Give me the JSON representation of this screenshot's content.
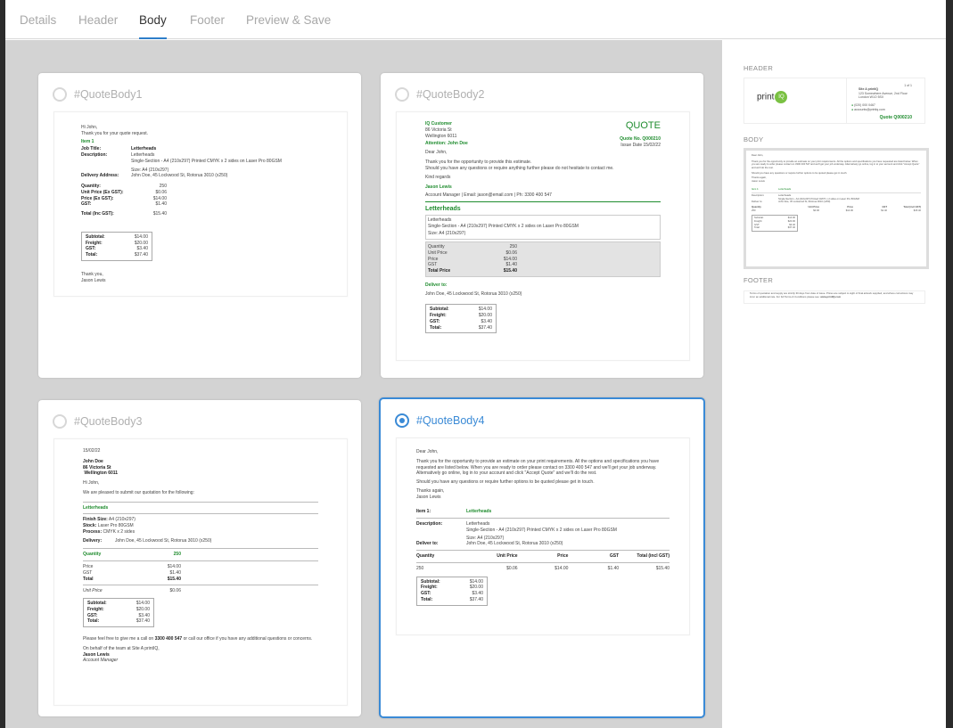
{
  "tabs": [
    {
      "label": "Details",
      "active": false
    },
    {
      "label": "Header",
      "active": false
    },
    {
      "label": "Body",
      "active": true
    },
    {
      "label": "Footer",
      "active": false
    },
    {
      "label": "Preview & Save",
      "active": false
    }
  ],
  "cards": [
    {
      "title": "#QuoteBody1",
      "selected": false
    },
    {
      "title": "#QuoteBody2",
      "selected": false
    },
    {
      "title": "#QuoteBody3",
      "selected": false
    },
    {
      "title": "#QuoteBody4",
      "selected": true
    }
  ],
  "body1": {
    "greeting": "Hi John,",
    "intro": "Thank you for your quote request.",
    "item": "Item 1",
    "job_title_k": "Job Title:",
    "job_title_v": "Letterheads",
    "desc_k": "Description:",
    "desc_v1": "Letterheads",
    "desc_v2": "Single-Section - A4 (210x297) Printed CMYK x 2 sides on Laser Pro 80GSM",
    "size": "Size: A4 (210x297)",
    "delivery_k": "Delivery Address:",
    "delivery_v": "John Doe, 45 Lockwood St, Rotorua 3010 (x250)",
    "qty_k": "Quantity:",
    "qty_v": "250",
    "unit_k": "Unit Price (Ex GST):",
    "unit_v": "$0.06",
    "price_k": "Price (Ex GST):",
    "price_v": "$14.00",
    "gst_k": "GST:",
    "gst_v": "$1.40",
    "total_k": "Total (Inc GST):",
    "total_v": "$15.40",
    "sub_k": "Subtotal:",
    "sub_v": "$14.00",
    "frt_k": "Freight:",
    "frt_v": "$20.00",
    "tgst_k": "GST:",
    "tgst_v": "$3.40",
    "tot_k": "Total:",
    "tot_v": "$37.40",
    "thanks": "Thank you,",
    "sign": "Jason Lewis"
  },
  "body2": {
    "company": "IQ Customer",
    "addr1": "86 Victoria St",
    "addr2": "Wellington 6011",
    "quote": "QUOTE",
    "qno_k": "Quote No.",
    "qno_v": "Q000210",
    "date_k": "Issue Date",
    "date_v": "15/02/22",
    "attn": "Attention: John Doe",
    "dear": "Dear John,",
    "p1": "Thank you for the opportunity to provide this estimate.",
    "p2": "Should you have any questions or require anything further please do not hesitate to contact me.",
    "regards": "Kind regards",
    "sign": "Jason Lewis",
    "contact": "Account Manager | Email: jason@email.com | Ph: 3300 400 547",
    "item": "Letterheads",
    "d1": "Letterheads",
    "d2": "Single-Section - A4 (210x297) Printed CMYK x 2 sides on Laser Pro 80GSM",
    "size": "Size: A4 (210x297)",
    "qty_k": "Quantity",
    "qty_v": "250",
    "unit_k": "Unit Price",
    "unit_v": "$0.06",
    "price_k": "Price",
    "price_v": "$14.00",
    "gst_k": "GST",
    "gst_v": "$1.40",
    "total_k": "Total Price",
    "total_v": "$15.40",
    "deliver_k": "Deliver to:",
    "deliver_v": "John Doe, 45 Lockwood St, Rotorua 3010 (x250)",
    "sub_k": "Subtotal:",
    "sub_v": "$14.00",
    "frt_k": "Freight:",
    "frt_v": "$20.00",
    "tgst_k": "GST:",
    "tgst_v": "$3.40",
    "tot_k": "Total:",
    "tot_v": "$37.40"
  },
  "body3": {
    "date": "15/02/22",
    "name": "John Doe",
    "addr1": "86 Victoria St",
    "addr2": "Wellington 6011",
    "hi": "Hi John,",
    "intro": "We are pleased to submit our quotation for the following:",
    "item": "Letterheads",
    "fs_k": "Finish Size:",
    "fs_v": "A4 (210x297)",
    "st_k": "Stock:",
    "st_v": "Laser Pro 80GSM",
    "pr_k": "Process:",
    "pr_v": "CMYK x 2 sides",
    "del_k": "Delivery:",
    "del_v": "John Doe, 45 Lockwood St, Rotorua 3010 (x250)",
    "qty_k": "Quantity",
    "qty_v": "250",
    "price_k": "Price",
    "price_v": "$14.00",
    "gst_k": "GST",
    "gst_v": "$1.40",
    "total_k": "Total",
    "total_v": "$15.40",
    "unit_k": "Unit Price",
    "unit_v": "$0.06",
    "sub_k": "Subtotal:",
    "sub_v": "$14.00",
    "frt_k": "Freight:",
    "frt_v": "$20.00",
    "tgst_k": "GST:",
    "tgst_v": "$3.40",
    "tot_k": "Total:",
    "tot_v": "$37.40",
    "call_pre": "Please feel free to give me a call on ",
    "call_num": "3300 400 547",
    "call_post": " or call our office if you have any additional questions or concerns.",
    "behalf": "On behalf of the team at Site A printIQ,",
    "sign": "Jason Lewis",
    "role": "Account Manager"
  },
  "body4": {
    "dear": "Dear John,",
    "p1": "Thank you for the opportunity to provide an estimate on your print requirements. All the options and specifications you have requested are listed below. When you are ready to order please contact on 3300 400 547 and we'll get your job underway. Alternatively go online, log in to your account and click \"Accept Quote\" and we'll do the rest.",
    "p2": "Should you have any questions or require further options to be quoted please get in touch.",
    "thanks": "Thanks again,",
    "sign": "Jason Lewis",
    "item_k": "Item 1:",
    "item_v": "Letterheads",
    "desc_k": "Description:",
    "d1": "Letterheads",
    "d2": "Single-Section - A4 (210x297) Printed CMYK x 2 sides on Laser Pro 80GSM",
    "size": "Size: A4 (210x297)",
    "del_k": "Deliver to:",
    "del_v": "John Doe, 45 Lockwood St, Rotorua 3010 (x250)",
    "cols": [
      "Quantity",
      "Unit Price",
      "Price",
      "GST",
      "Total (incl GST)"
    ],
    "vals": [
      "250",
      "$0.06",
      "$14.00",
      "$1.40",
      "$15.40"
    ],
    "sub_k": "Subtotal:",
    "sub_v": "$14.00",
    "frt_k": "Freight:",
    "frt_v": "$20.00",
    "tgst_k": "GST:",
    "tgst_v": "$3.40",
    "tot_k": "Total:",
    "tot_v": "$37.40"
  },
  "side": {
    "header_label": "HEADER",
    "body_label": "BODY",
    "footer_label": "FOOTER",
    "logo_text": "print",
    "logo_iq": "IQ",
    "page": "1 of 1",
    "company": "Site A printIQ",
    "addr1": "123 Somewhere Avenue, 2nd Floor",
    "addr2": "London W1O 5SX",
    "phone": "(020) 000 0467",
    "email": "accounts@printiq.com",
    "quote_no": "Quote Q000210",
    "footer_text": "Terms of quotation and supply are strictly 30 days from date of issue. Prices are subject to sight of final artwork supplied, and where corrections may incur an additional rate. For full Terms & Conditions please see: ",
    "footer_link": "www.printIQ.com"
  },
  "colors": {
    "accent": "#3a8ad6",
    "green": "#1f8c2e",
    "gallery_bg": "#d3d3d3"
  }
}
